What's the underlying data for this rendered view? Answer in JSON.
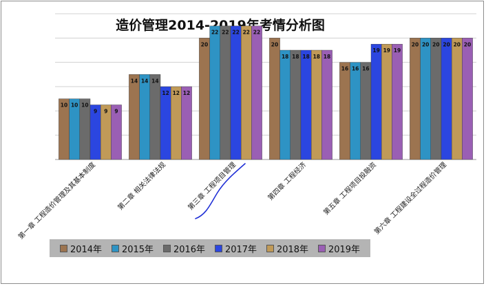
{
  "chart_data": {
    "type": "bar",
    "title": "造价管理2014-2019年考情分析图",
    "xlabel": "",
    "ylabel": "",
    "ylim": [
      0,
      24
    ],
    "grid": true,
    "legend_position": "bottom",
    "categories": [
      "第一章 工程造价管理及其基本制度",
      "第二章 相关法律法规",
      "第三章 工程项目管理",
      "第四章 工程经济",
      "第五章 工程项目投融资",
      "第六章 工程建设全过程造价管理"
    ],
    "series": [
      {
        "name": "2014年",
        "color": "#9c7450",
        "values": [
          10,
          14,
          20,
          20,
          16,
          20
        ]
      },
      {
        "name": "2015年",
        "color": "#2e93c4",
        "values": [
          10,
          14,
          22,
          18,
          16,
          20
        ]
      },
      {
        "name": "2016年",
        "color": "#6b6b6b",
        "values": [
          10,
          14,
          22,
          18,
          16,
          20
        ]
      },
      {
        "name": "2017年",
        "color": "#2b46e0",
        "values": [
          9,
          12,
          22,
          18,
          19,
          20
        ]
      },
      {
        "name": "2018年",
        "color": "#c09a58",
        "values": [
          9,
          12,
          22,
          18,
          19,
          20
        ]
      },
      {
        "name": "2019年",
        "color": "#9a5fb4",
        "values": [
          9,
          12,
          22,
          18,
          19,
          20
        ]
      }
    ]
  },
  "annotation": {
    "color": "#1f2fd6"
  }
}
